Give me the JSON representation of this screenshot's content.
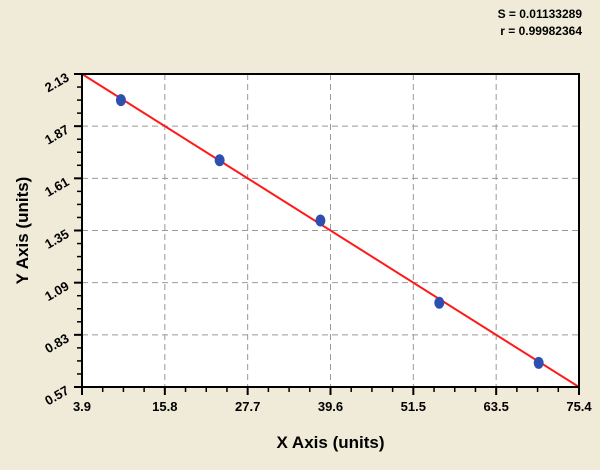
{
  "stats": {
    "s": "S = 0.01133289",
    "r": "r = 0.99982364"
  },
  "chart_data": {
    "type": "scatter",
    "title": "",
    "xlabel": "X Axis (units)",
    "ylabel": "Y Axis (units)",
    "xlim": [
      3.9,
      75.4
    ],
    "ylim": [
      0.57,
      2.13
    ],
    "xticks": [
      "3.9",
      "15.8",
      "27.7",
      "39.6",
      "51.5",
      "63.5",
      "75.4"
    ],
    "yticks": [
      "0.57",
      "0.83",
      "1.09",
      "1.35",
      "1.61",
      "1.87",
      "2.13"
    ],
    "grid": true,
    "points": [
      {
        "x": 9.5,
        "y": 2.0
      },
      {
        "x": 23.7,
        "y": 1.7
      },
      {
        "x": 38.2,
        "y": 1.4
      },
      {
        "x": 55.3,
        "y": 0.99
      },
      {
        "x": 69.6,
        "y": 0.69
      }
    ],
    "fit_line": {
      "x": [
        3.9,
        75.4
      ],
      "y": [
        2.13,
        0.57
      ]
    },
    "colors": {
      "points": "#2f4fb0",
      "line": "#ff1a1a",
      "background": "#efebd8",
      "plot": "#ffffff"
    }
  }
}
